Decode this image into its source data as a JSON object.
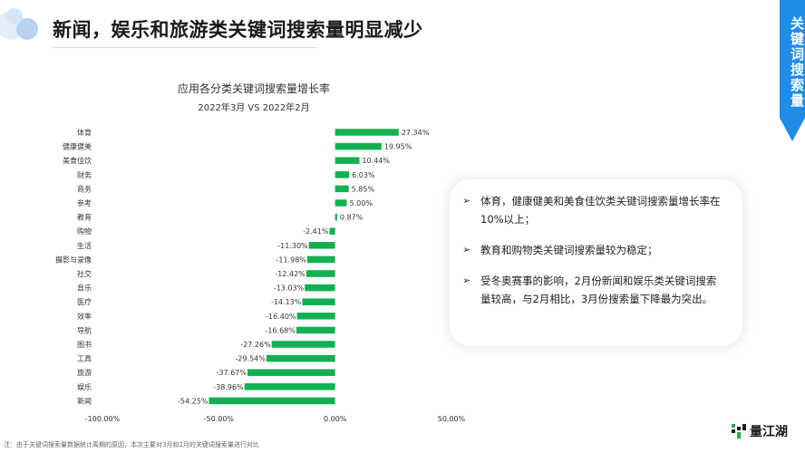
{
  "header": {
    "title": "新闻，娱乐和旅游类关键词搜索量明显减少",
    "side_tab": "关键词搜索量"
  },
  "chart_data": {
    "type": "bar",
    "orientation": "horizontal",
    "title": "应用各分类关键词搜索量增长率",
    "subtitle": "2022年3月 VS 2022年2月",
    "categories": [
      "体育",
      "健康健美",
      "美食佳饮",
      "财务",
      "商务",
      "参考",
      "教育",
      "购物",
      "生活",
      "摄影与录像",
      "社交",
      "音乐",
      "医疗",
      "效率",
      "导航",
      "图书",
      "工具",
      "旅游",
      "娱乐",
      "新闻"
    ],
    "values": [
      27.34,
      19.95,
      10.44,
      6.03,
      5.85,
      5.0,
      0.87,
      -2.41,
      -11.3,
      -11.98,
      -12.42,
      -13.03,
      -14.13,
      -16.4,
      -16.68,
      -27.26,
      -29.54,
      -37.67,
      -38.96,
      -54.25
    ],
    "value_labels": [
      "27.34%",
      "19.95%",
      "10.44%",
      "6.03%",
      "5.85%",
      "5.00%",
      "0.87%",
      "-2.41%",
      "-11.30%",
      "-11.98%",
      "-12.42%",
      "-13.03%",
      "-14.13%",
      "-16.40%",
      "-16.68%",
      "-27.26%",
      "-29.54%",
      "-37.67%",
      "-38.96%",
      "-54.25%"
    ],
    "xlim": [
      -100,
      50
    ],
    "x_ticks": [
      -100,
      -50,
      0,
      50
    ],
    "x_tick_labels": [
      "-100.00%",
      "-50.00%",
      "0.00%",
      "50.00%"
    ],
    "bar_color": "#12b050",
    "grid": false,
    "legend": "none"
  },
  "info_box": {
    "bullets": [
      "体育，健康健美和美食佳饮类关键词搜索量增长率在10%以上；",
      "教育和购物类关键词搜索量较为稳定；",
      "受冬奥赛事的影响，2月份新闻和娱乐类关键词搜索量较高，与2月相比，3月份搜索量下降最为突出。"
    ],
    "arrow": "➢"
  },
  "footnote": "注：由于关键词搜索量数据统计周期的原因，本次主要对3月和2月的关键词搜索量进行对比",
  "brand": {
    "name": "量江湖"
  },
  "colors": {
    "accent": "#1f8ce8",
    "bar": "#12b050"
  }
}
